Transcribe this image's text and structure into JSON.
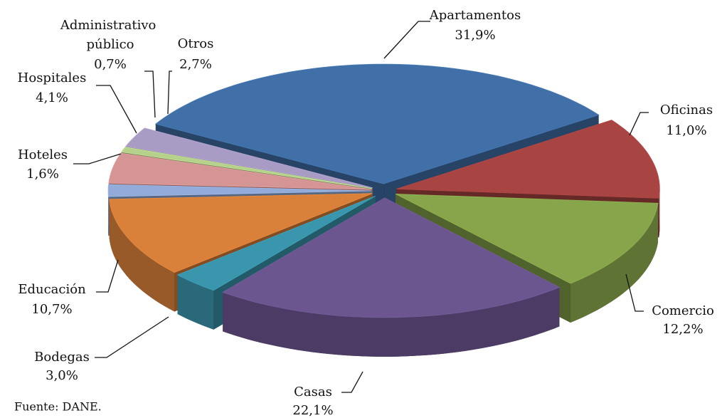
{
  "chart_data": {
    "type": "pie",
    "source": "Fuente: DANE.",
    "categories": [
      "Apartamentos",
      "Oficinas",
      "Comercio",
      "Casas",
      "Bodegas",
      "Educación",
      "Hoteles",
      "Hospitales",
      "Administrativo público",
      "Otros"
    ],
    "values": [
      31.9,
      11.0,
      12.2,
      22.1,
      3.0,
      10.7,
      1.6,
      4.1,
      0.7,
      2.7
    ],
    "value_labels": [
      "31,9%",
      "11,0%",
      "12,2%",
      "22,1%",
      "3,0%",
      "10,7%",
      "1,6%",
      "4,1%",
      "0,7%",
      "2,7%"
    ],
    "colors": [
      "#4170a8",
      "#a84442",
      "#87a54b",
      "#6c5690",
      "#3a96ad",
      "#d9813a",
      "#93abd8",
      "#d59595",
      "#b6d18c",
      "#a99cc4"
    ]
  }
}
